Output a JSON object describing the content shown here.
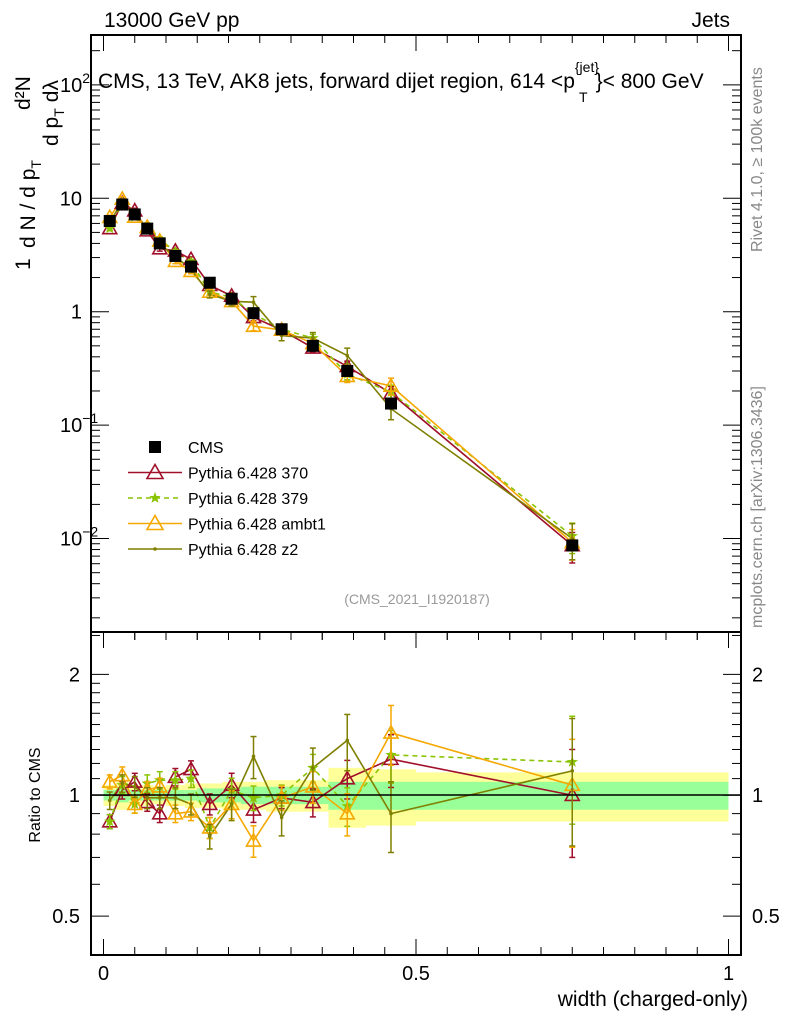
{
  "header": {
    "left": "13000 GeV pp",
    "right": "Jets"
  },
  "side_text": {
    "rivet": "Rivet 4.1.0, ≥ 100k events",
    "mcplots": "mcplots.cern.ch [arXiv:1306.3436]"
  },
  "analysis_id": "(CMS_2021_I1920187)",
  "chart_data": {
    "type": "line",
    "title": "CMS, 13 TeV, AK8 jets, forward dijet region, 614 <p_T^{jet}< 800 GeV",
    "title_parts": {
      "main": "CMS, 13 TeV, AK8 jets, forward dijet region, 614 <p",
      "sup": "{jet}",
      "sub": "T",
      "end": "}< 800 GeV"
    },
    "xlabel": "width (charged-only)",
    "ylabel_parts": [
      "1",
      "d N / d p",
      "T",
      "d²N",
      "d p",
      "T",
      "dλ"
    ],
    "ratio_ylabel": "Ratio to CMS",
    "xlim": [
      -0.02,
      1.02
    ],
    "ylim": [
      0.0015,
      275
    ],
    "ratio_ylim": [
      0.4,
      2.55
    ],
    "yscale": "log",
    "x_ticks": [
      {
        "v": 0,
        "label": "0"
      },
      {
        "v": 0.5,
        "label": "0.5"
      },
      {
        "v": 1,
        "label": "1"
      }
    ],
    "y_ticks": [
      {
        "v": 100,
        "label": "10",
        "exp": "2"
      },
      {
        "v": 10,
        "label": "10",
        "exp": ""
      },
      {
        "v": 1,
        "label": "1",
        "exp": ""
      },
      {
        "v": 0.1,
        "label": "10",
        "exp": "−1"
      },
      {
        "v": 0.01,
        "label": "10",
        "exp": "−2"
      }
    ],
    "ratio_ticks": [
      {
        "v": 2,
        "label": "2"
      },
      {
        "v": 1,
        "label": "1"
      },
      {
        "v": 0.5,
        "label": "0.5"
      }
    ],
    "bin_edges": [
      0,
      0.02,
      0.04,
      0.06,
      0.08,
      0.1,
      0.13,
      0.15,
      0.19,
      0.22,
      0.26,
      0.31,
      0.36,
      0.42,
      0.5,
      1.0
    ],
    "x": [
      0.01,
      0.03,
      0.05,
      0.07,
      0.09,
      0.115,
      0.14,
      0.17,
      0.205,
      0.24,
      0.285,
      0.335,
      0.39,
      0.46,
      0.75
    ],
    "data": {
      "name": "CMS",
      "color": "#000000",
      "values": [
        6.3,
        8.8,
        7.2,
        5.4,
        4.0,
        3.1,
        2.5,
        1.8,
        1.3,
        0.97,
        0.7,
        0.5,
        0.3,
        0.155,
        0.0087
      ],
      "stat_band": [
        0.03,
        0.04,
        0.03,
        0.03,
        0.03,
        0.03,
        0.03,
        0.04,
        0.04,
        0.05,
        0.05,
        0.05,
        0.08,
        0.08,
        0.08
      ],
      "total_band": [
        0.06,
        0.08,
        0.06,
        0.06,
        0.05,
        0.06,
        0.07,
        0.07,
        0.08,
        0.08,
        0.09,
        0.09,
        0.17,
        0.16,
        0.14
      ]
    },
    "series": [
      {
        "name": "Pythia 6.428 370",
        "color": "#a0102a",
        "marker": "triangle",
        "dash": false,
        "ratio": [
          0.86,
          1.03,
          1.08,
          0.96,
          0.9,
          1.11,
          1.16,
          0.95,
          1.06,
          0.92,
          0.985,
          0.96,
          1.1,
          1.23,
          1.0
        ],
        "err": [
          0.04,
          0.05,
          0.05,
          0.05,
          0.05,
          0.05,
          0.05,
          0.06,
          0.07,
          0.07,
          0.06,
          0.08,
          0.11,
          0.15,
          0.3
        ]
      },
      {
        "name": "Pythia 6.428 379",
        "color": "#8ac400",
        "marker": "star",
        "dash": true,
        "ratio": [
          0.86,
          1.06,
          0.95,
          1.07,
          1.09,
          1.09,
          1.1,
          0.83,
          1.03,
          0.985,
          1.0,
          1.17,
          0.94,
          1.26,
          1.21
        ],
        "err": [
          0.04,
          0.05,
          0.05,
          0.05,
          0.05,
          0.05,
          0.05,
          0.06,
          0.07,
          0.07,
          0.06,
          0.08,
          0.11,
          0.15,
          0.3
        ]
      },
      {
        "name": "Pythia 6.428 ambt1",
        "color": "#f5a800",
        "marker": "triangle",
        "dash": false,
        "ratio": [
          1.08,
          1.12,
          0.95,
          1.03,
          1.05,
          0.9,
          0.91,
          0.83,
          0.95,
          0.77,
          0.985,
          1.05,
          0.9,
          1.43,
          1.06
        ],
        "err": [
          0.04,
          0.05,
          0.05,
          0.05,
          0.05,
          0.05,
          0.05,
          0.06,
          0.08,
          0.09,
          0.07,
          0.09,
          0.12,
          0.17,
          0.3
        ]
      },
      {
        "name": "Pythia 6.428 z2",
        "color": "#7f7f00",
        "marker": "dot",
        "dash": false,
        "ratio": [
          0.97,
          1.07,
          1.05,
          0.985,
          0.985,
          0.985,
          0.95,
          0.79,
          0.95,
          1.25,
          0.88,
          1.17,
          1.37,
          0.9,
          1.15
        ],
        "err": [
          0.05,
          0.05,
          0.06,
          0.06,
          0.06,
          0.06,
          0.06,
          0.07,
          0.09,
          0.12,
          0.1,
          0.12,
          0.16,
          0.2,
          0.35
        ]
      }
    ]
  }
}
